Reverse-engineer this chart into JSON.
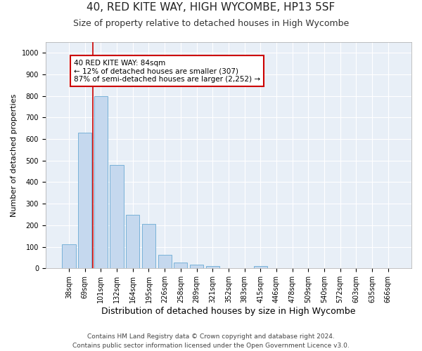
{
  "title1": "40, RED KITE WAY, HIGH WYCOMBE, HP13 5SF",
  "title2": "Size of property relative to detached houses in High Wycombe",
  "xlabel": "Distribution of detached houses by size in High Wycombe",
  "ylabel": "Number of detached properties",
  "categories": [
    "38sqm",
    "69sqm",
    "101sqm",
    "132sqm",
    "164sqm",
    "195sqm",
    "226sqm",
    "258sqm",
    "289sqm",
    "321sqm",
    "352sqm",
    "383sqm",
    "415sqm",
    "446sqm",
    "478sqm",
    "509sqm",
    "540sqm",
    "572sqm",
    "603sqm",
    "635sqm",
    "666sqm"
  ],
  "values": [
    110,
    630,
    800,
    480,
    250,
    205,
    62,
    28,
    18,
    10,
    0,
    0,
    10,
    0,
    0,
    0,
    0,
    0,
    0,
    0,
    0
  ],
  "bar_color": "#c5d8ee",
  "bar_edge_color": "#6aaad4",
  "redline_x": 1.5,
  "annotation_line1": "40 RED KITE WAY: 84sqm",
  "annotation_line2": "← 12% of detached houses are smaller (307)",
  "annotation_line3": "87% of semi-detached houses are larger (2,252) →",
  "annotation_box_color": "#ffffff",
  "annotation_box_edge": "#cc0000",
  "redline_color": "#cc0000",
  "ylim": [
    0,
    1050
  ],
  "yticks": [
    0,
    100,
    200,
    300,
    400,
    500,
    600,
    700,
    800,
    900,
    1000
  ],
  "footer1": "Contains HM Land Registry data © Crown copyright and database right 2024.",
  "footer2": "Contains public sector information licensed under the Open Government Licence v3.0.",
  "plot_bg_color": "#e8eff7",
  "title1_fontsize": 11,
  "title2_fontsize": 9,
  "xlabel_fontsize": 9,
  "ylabel_fontsize": 8,
  "tick_fontsize": 7,
  "annot_fontsize": 7.5,
  "footer_fontsize": 6.5
}
